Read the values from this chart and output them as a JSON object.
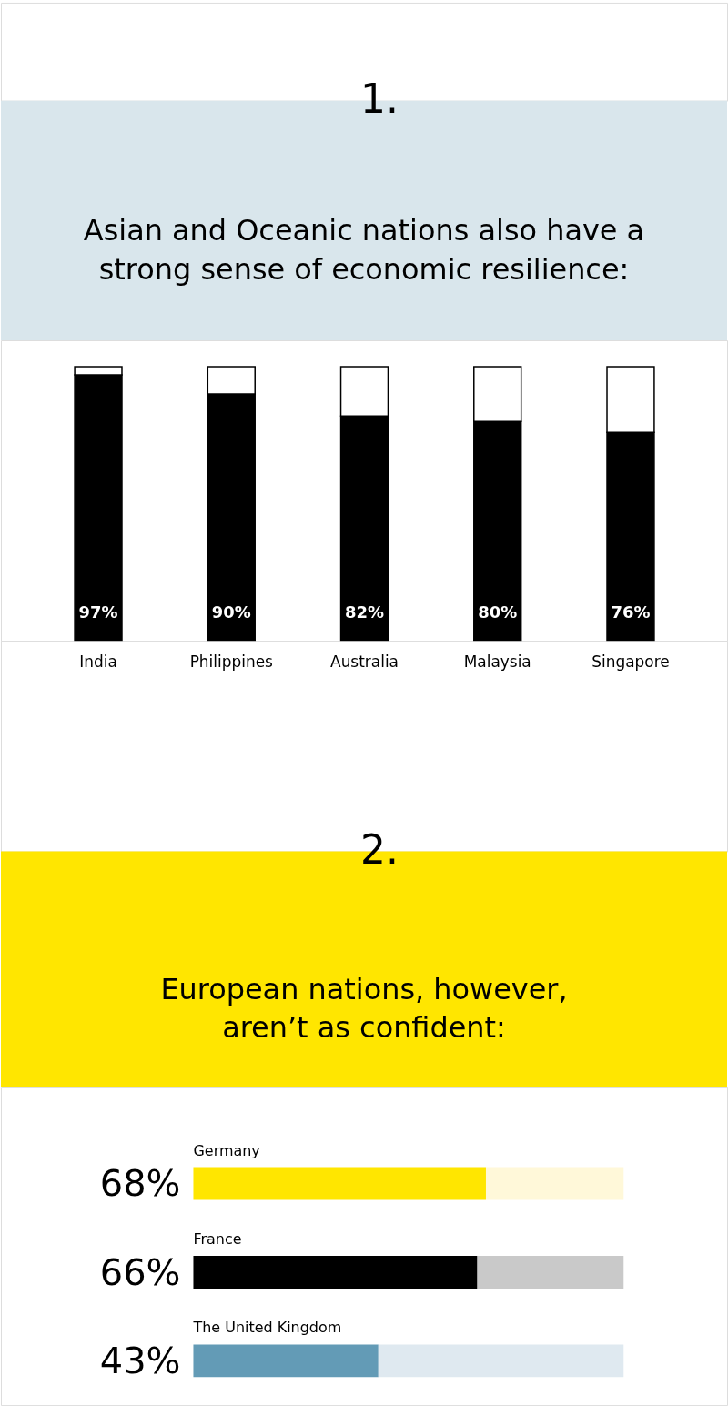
{
  "chart_data": [
    {
      "type": "bar",
      "title": "Asian and Oceanic nations also have a\nstrong sense of economic resilience:",
      "annotations": [
        "1."
      ],
      "categories": [
        "India",
        "Philippines",
        "Australia",
        "Malaysia",
        "Singapore"
      ],
      "stacked": true,
      "series": [
        {
          "color": "#000000",
          "values": [
            97,
            90,
            82,
            80,
            76
          ],
          "value_labels": [
            "97%",
            "90%",
            "82%",
            "80%",
            "76%"
          ]
        },
        {
          "color": "#ffffff",
          "values": [
            3,
            10,
            18,
            20,
            24
          ]
        }
      ],
      "ylim": [
        0,
        100
      ],
      "tick_labels": "x"
    },
    {
      "type": "bar",
      "orientation": "horizontal",
      "stacked": true,
      "title": "European nations, however,\naren’t as confident:",
      "annotations": [
        "2."
      ],
      "categories": [
        "Germany",
        "France",
        "The United Kingdom"
      ],
      "series": [
        {
          "colors": [
            "#ffe600",
            "#000000",
            "#639bb6"
          ],
          "values": [
            68,
            66,
            43
          ],
          "value_labels": [
            "68%",
            "66%",
            "43%"
          ]
        },
        {
          "colors": [
            "#fff8d9",
            "#c9c9c9",
            "#dfe9f0"
          ],
          "values": [
            32,
            34,
            57
          ]
        }
      ],
      "xlim": [
        0,
        100
      ],
      "tick_labels": "y"
    }
  ]
}
